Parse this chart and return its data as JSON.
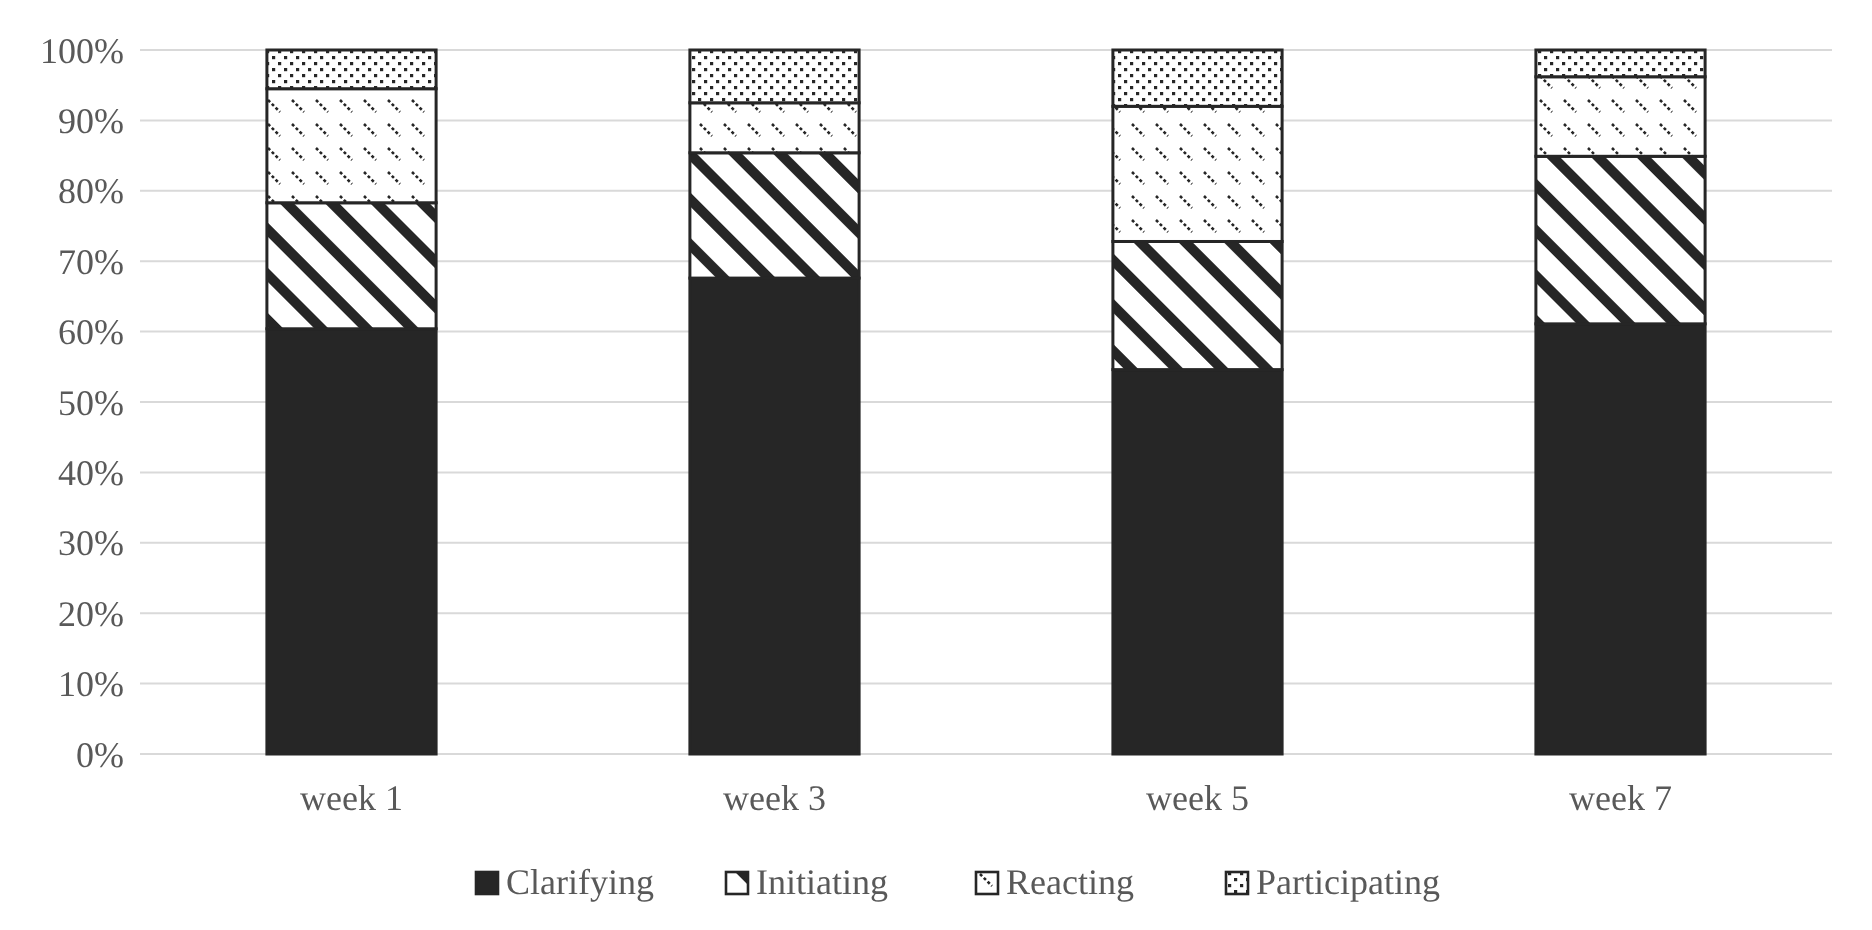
{
  "chart_data": {
    "type": "bar",
    "stacked": true,
    "categories": [
      "week 1",
      "week 3",
      "week 5",
      "week 7"
    ],
    "series": [
      {
        "name": "Clarifying",
        "color": "#262626",
        "values": [
          60.4,
          67.6,
          54.6,
          61.1
        ]
      },
      {
        "name": "Initiating",
        "color": "#262626",
        "values": [
          17.9,
          17.8,
          18.2,
          23.8
        ]
      },
      {
        "name": "Reacting",
        "color": "#262626",
        "values": [
          16.2,
          7.1,
          19.2,
          11.3
        ]
      },
      {
        "name": "Participating",
        "color": "#262626",
        "values": [
          5.5,
          7.5,
          8.0,
          3.8
        ]
      }
    ],
    "ylim": [
      0,
      100
    ],
    "yticks": [
      {
        "value": 0,
        "label": "0%"
      },
      {
        "value": 10,
        "label": "10%"
      },
      {
        "value": 20,
        "label": "20%"
      },
      {
        "value": 30,
        "label": "30%"
      },
      {
        "value": 40,
        "label": "40%"
      },
      {
        "value": 50,
        "label": "50%"
      },
      {
        "value": 60,
        "label": "60%"
      },
      {
        "value": 70,
        "label": "70%"
      },
      {
        "value": 80,
        "label": "80%"
      },
      {
        "value": 90,
        "label": "90%"
      },
      {
        "value": 100,
        "label": "100%"
      }
    ],
    "grid": "y",
    "legend": "bottom"
  }
}
